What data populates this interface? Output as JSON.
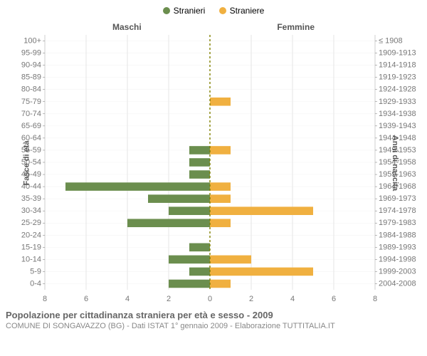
{
  "legend": {
    "items": [
      {
        "label": "Stranieri",
        "color": "#6b8e4e"
      },
      {
        "label": "Straniere",
        "color": "#f0b040"
      }
    ]
  },
  "chart": {
    "type": "population-pyramid",
    "left_title": "Maschi",
    "right_title": "Femmine",
    "y_left_label": "Fasce di età",
    "y_right_label": "Anni di nascita",
    "background_color": "#ffffff",
    "grid_color": "#e6e6e6",
    "zero_line_color": "#808000",
    "zero_line_dash": "3,3",
    "tick_fontsize": 11,
    "tick_color": "#777777",
    "bar_height_ratio": 0.68,
    "x_max": 8,
    "x_ticks": [
      0,
      2,
      4,
      6,
      8
    ],
    "male_color": "#6b8e4e",
    "female_color": "#f0b040",
    "rows": [
      {
        "age": "100+",
        "birth": "≤ 1908",
        "m": 0,
        "f": 0
      },
      {
        "age": "95-99",
        "birth": "1909-1913",
        "m": 0,
        "f": 0
      },
      {
        "age": "90-94",
        "birth": "1914-1918",
        "m": 0,
        "f": 0
      },
      {
        "age": "85-89",
        "birth": "1919-1923",
        "m": 0,
        "f": 0
      },
      {
        "age": "80-84",
        "birth": "1924-1928",
        "m": 0,
        "f": 0
      },
      {
        "age": "75-79",
        "birth": "1929-1933",
        "m": 0,
        "f": 1
      },
      {
        "age": "70-74",
        "birth": "1934-1938",
        "m": 0,
        "f": 0
      },
      {
        "age": "65-69",
        "birth": "1939-1943",
        "m": 0,
        "f": 0
      },
      {
        "age": "60-64",
        "birth": "1944-1948",
        "m": 0,
        "f": 0
      },
      {
        "age": "55-59",
        "birth": "1949-1953",
        "m": 1,
        "f": 1
      },
      {
        "age": "50-54",
        "birth": "1954-1958",
        "m": 1,
        "f": 0
      },
      {
        "age": "45-49",
        "birth": "1959-1963",
        "m": 1,
        "f": 0
      },
      {
        "age": "40-44",
        "birth": "1964-1968",
        "m": 7,
        "f": 1
      },
      {
        "age": "35-39",
        "birth": "1969-1973",
        "m": 3,
        "f": 1
      },
      {
        "age": "30-34",
        "birth": "1974-1978",
        "m": 2,
        "f": 5
      },
      {
        "age": "25-29",
        "birth": "1979-1983",
        "m": 4,
        "f": 1
      },
      {
        "age": "20-24",
        "birth": "1984-1988",
        "m": 0,
        "f": 0
      },
      {
        "age": "15-19",
        "birth": "1989-1993",
        "m": 1,
        "f": 0
      },
      {
        "age": "10-14",
        "birth": "1994-1998",
        "m": 2,
        "f": 2
      },
      {
        "age": "5-9",
        "birth": "1999-2003",
        "m": 1,
        "f": 5
      },
      {
        "age": "0-4",
        "birth": "2004-2008",
        "m": 2,
        "f": 1
      }
    ]
  },
  "footer": {
    "title": "Popolazione per cittadinanza straniera per età e sesso - 2009",
    "subtitle": "COMUNE DI SONGAVAZZO (BG) - Dati ISTAT 1° gennaio 2009 - Elaborazione TUTTITALIA.IT"
  }
}
